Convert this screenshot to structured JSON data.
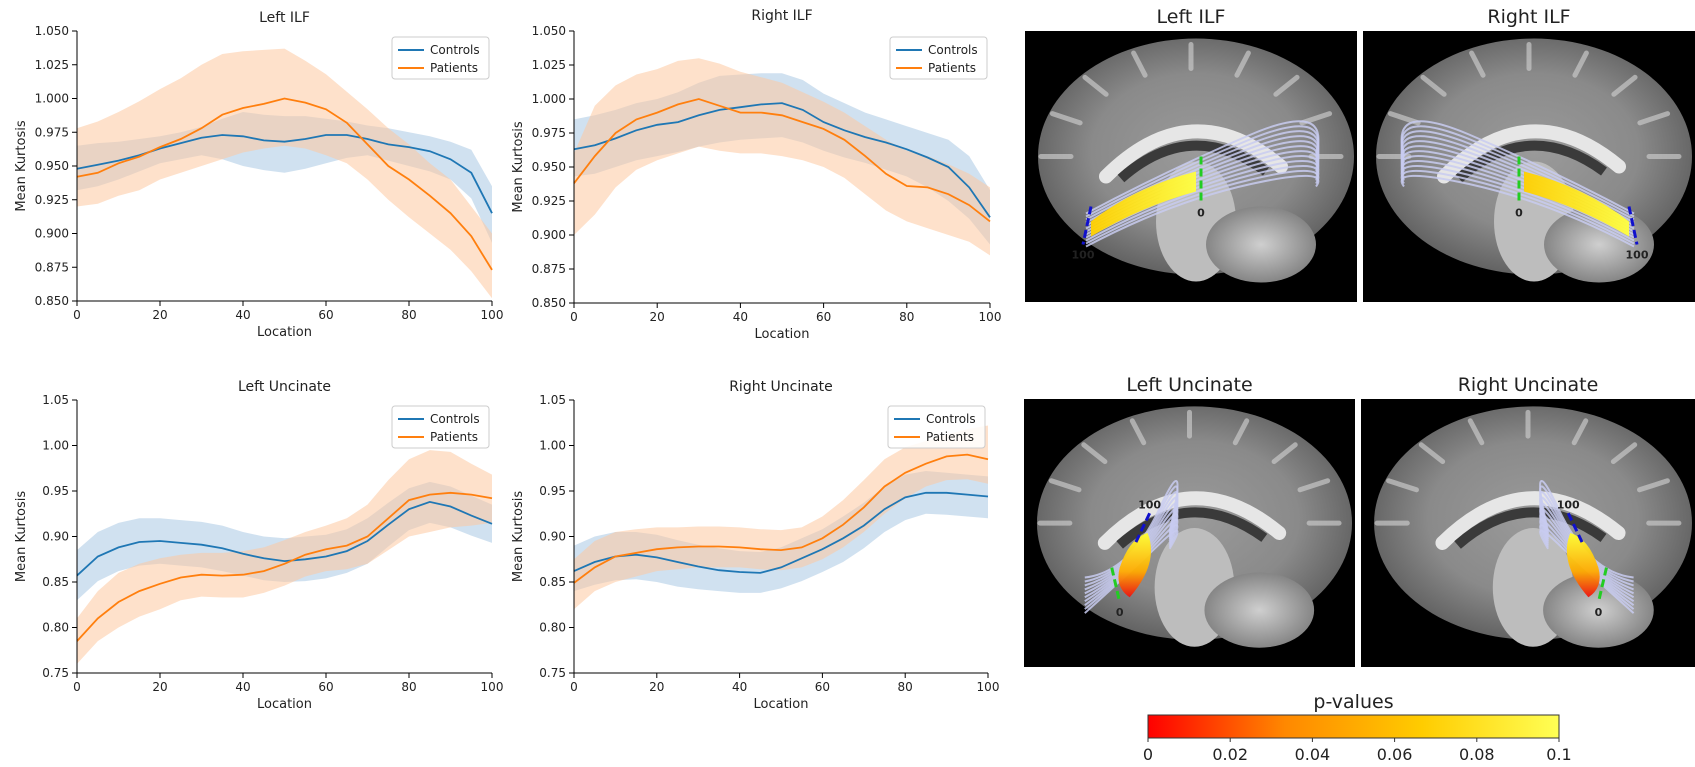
{
  "colors": {
    "controls": "#1f77b4",
    "patients": "#ff7f0e",
    "controls_band": "#a9c8e4",
    "patients_band": "#fdc9a0",
    "tract_fibers": "#c8cbf0",
    "marker_start": "#22cc22",
    "marker_end": "#1010cc"
  },
  "chart_data": [
    {
      "type": "line",
      "title": "Left ILF",
      "xlabel": "Location",
      "ylabel": "Mean Kurtosis",
      "xlim": [
        0,
        100
      ],
      "ylim": [
        0.85,
        1.05
      ],
      "xticks": [
        0,
        20,
        40,
        60,
        80,
        100
      ],
      "yticks": [
        "0.850",
        "0.875",
        "0.900",
        "0.925",
        "0.950",
        "0.975",
        "1.000",
        "1.025",
        "1.050"
      ],
      "legend_position": "top-right",
      "grid": false,
      "x": [
        0,
        5,
        10,
        15,
        20,
        25,
        30,
        35,
        40,
        45,
        50,
        55,
        60,
        65,
        70,
        75,
        80,
        85,
        90,
        95,
        100
      ],
      "series": [
        {
          "name": "Controls",
          "color": "#1f77b4",
          "values": [
            0.948,
            0.951,
            0.954,
            0.958,
            0.963,
            0.967,
            0.971,
            0.973,
            0.972,
            0.969,
            0.968,
            0.97,
            0.973,
            0.973,
            0.97,
            0.966,
            0.964,
            0.961,
            0.955,
            0.945,
            0.915
          ],
          "upper": [
            0.965,
            0.967,
            0.968,
            0.97,
            0.972,
            0.975,
            0.979,
            0.985,
            0.99,
            0.988,
            0.987,
            0.987,
            0.985,
            0.983,
            0.98,
            0.978,
            0.975,
            0.972,
            0.968,
            0.962,
            0.935
          ],
          "lower": [
            0.932,
            0.935,
            0.94,
            0.946,
            0.952,
            0.955,
            0.958,
            0.955,
            0.95,
            0.947,
            0.945,
            0.948,
            0.952,
            0.956,
            0.958,
            0.954,
            0.95,
            0.946,
            0.94,
            0.926,
            0.893
          ]
        },
        {
          "name": "Patients",
          "color": "#ff7f0e",
          "values": [
            0.942,
            0.945,
            0.952,
            0.957,
            0.964,
            0.97,
            0.978,
            0.988,
            0.993,
            0.996,
            1.0,
            0.997,
            0.992,
            0.982,
            0.966,
            0.95,
            0.94,
            0.928,
            0.915,
            0.898,
            0.873
          ],
          "upper": [
            0.978,
            0.983,
            0.99,
            0.998,
            1.007,
            1.015,
            1.025,
            1.033,
            1.035,
            1.036,
            1.037,
            1.028,
            1.018,
            1.005,
            0.992,
            0.978,
            0.966,
            0.952,
            0.94,
            0.92,
            0.9
          ],
          "lower": [
            0.92,
            0.922,
            0.928,
            0.932,
            0.94,
            0.945,
            0.95,
            0.955,
            0.96,
            0.963,
            0.965,
            0.963,
            0.958,
            0.952,
            0.94,
            0.925,
            0.912,
            0.9,
            0.888,
            0.872,
            0.852
          ]
        }
      ]
    },
    {
      "type": "line",
      "title": "Right ILF",
      "xlabel": "Location",
      "ylabel": "Mean Kurtosis",
      "xlim": [
        0,
        100
      ],
      "ylim": [
        0.85,
        1.05
      ],
      "xticks": [
        0,
        20,
        40,
        60,
        80,
        100
      ],
      "yticks": [
        "0.850",
        "0.875",
        "0.900",
        "0.925",
        "0.950",
        "0.975",
        "1.000",
        "1.025",
        "1.050"
      ],
      "legend_position": "top-right",
      "grid": false,
      "x": [
        0,
        5,
        10,
        15,
        20,
        25,
        30,
        35,
        40,
        45,
        50,
        55,
        60,
        65,
        70,
        75,
        80,
        85,
        90,
        95,
        100
      ],
      "series": [
        {
          "name": "Controls",
          "color": "#1f77b4",
          "values": [
            0.963,
            0.966,
            0.971,
            0.977,
            0.981,
            0.983,
            0.988,
            0.992,
            0.994,
            0.996,
            0.997,
            0.992,
            0.983,
            0.977,
            0.972,
            0.968,
            0.963,
            0.957,
            0.95,
            0.935,
            0.913
          ],
          "upper": [
            0.985,
            0.988,
            0.992,
            0.997,
            1.0,
            1.005,
            1.012,
            1.017,
            1.018,
            1.019,
            1.019,
            1.014,
            1.004,
            0.997,
            0.99,
            0.985,
            0.98,
            0.975,
            0.97,
            0.958,
            0.933
          ],
          "lower": [
            0.943,
            0.945,
            0.95,
            0.955,
            0.958,
            0.961,
            0.965,
            0.968,
            0.97,
            0.971,
            0.972,
            0.968,
            0.962,
            0.957,
            0.953,
            0.948,
            0.943,
            0.935,
            0.925,
            0.912,
            0.893
          ]
        },
        {
          "name": "Patients",
          "color": "#ff7f0e",
          "values": [
            0.938,
            0.958,
            0.975,
            0.985,
            0.99,
            0.996,
            1.0,
            0.995,
            0.99,
            0.99,
            0.988,
            0.983,
            0.978,
            0.97,
            0.958,
            0.945,
            0.936,
            0.935,
            0.93,
            0.922,
            0.91
          ],
          "upper": [
            0.96,
            0.995,
            1.01,
            1.018,
            1.022,
            1.028,
            1.03,
            1.026,
            1.02,
            1.016,
            1.012,
            1.005,
            0.998,
            0.99,
            0.98,
            0.97,
            0.962,
            0.958,
            0.952,
            0.945,
            0.935
          ],
          "lower": [
            0.9,
            0.915,
            0.935,
            0.948,
            0.955,
            0.96,
            0.965,
            0.962,
            0.96,
            0.96,
            0.958,
            0.955,
            0.95,
            0.942,
            0.93,
            0.918,
            0.91,
            0.905,
            0.9,
            0.895,
            0.885
          ]
        }
      ]
    },
    {
      "type": "line",
      "title": "Left Uncinate",
      "xlabel": "Location",
      "ylabel": "Mean Kurtosis",
      "xlim": [
        0,
        100
      ],
      "ylim": [
        0.75,
        1.05
      ],
      "xticks": [
        0,
        20,
        40,
        60,
        80,
        100
      ],
      "yticks": [
        "0.75",
        "0.80",
        "0.85",
        "0.90",
        "0.95",
        "1.00",
        "1.05"
      ],
      "legend_position": "top-right",
      "grid": false,
      "x": [
        0,
        5,
        10,
        15,
        20,
        25,
        30,
        35,
        40,
        45,
        50,
        55,
        60,
        65,
        70,
        75,
        80,
        85,
        90,
        95,
        100
      ],
      "series": [
        {
          "name": "Controls",
          "color": "#1f77b4",
          "values": [
            0.857,
            0.878,
            0.888,
            0.894,
            0.895,
            0.893,
            0.891,
            0.887,
            0.881,
            0.876,
            0.873,
            0.875,
            0.878,
            0.884,
            0.895,
            0.913,
            0.93,
            0.938,
            0.933,
            0.923,
            0.914
          ],
          "upper": [
            0.885,
            0.905,
            0.915,
            0.92,
            0.92,
            0.918,
            0.916,
            0.912,
            0.905,
            0.9,
            0.898,
            0.9,
            0.902,
            0.908,
            0.92,
            0.937,
            0.953,
            0.96,
            0.955,
            0.945,
            0.935
          ],
          "lower": [
            0.83,
            0.851,
            0.862,
            0.868,
            0.87,
            0.868,
            0.866,
            0.862,
            0.857,
            0.852,
            0.85,
            0.851,
            0.854,
            0.86,
            0.87,
            0.889,
            0.907,
            0.915,
            0.91,
            0.901,
            0.893
          ]
        },
        {
          "name": "Patients",
          "color": "#ff7f0e",
          "values": [
            0.785,
            0.81,
            0.828,
            0.84,
            0.848,
            0.855,
            0.858,
            0.857,
            0.858,
            0.862,
            0.87,
            0.88,
            0.886,
            0.89,
            0.9,
            0.92,
            0.94,
            0.946,
            0.948,
            0.946,
            0.942
          ],
          "upper": [
            0.81,
            0.84,
            0.86,
            0.87,
            0.876,
            0.88,
            0.882,
            0.882,
            0.884,
            0.888,
            0.896,
            0.905,
            0.912,
            0.92,
            0.935,
            0.962,
            0.985,
            0.995,
            0.993,
            0.98,
            0.968
          ],
          "lower": [
            0.76,
            0.785,
            0.8,
            0.812,
            0.82,
            0.83,
            0.834,
            0.833,
            0.833,
            0.838,
            0.846,
            0.856,
            0.862,
            0.864,
            0.87,
            0.885,
            0.9,
            0.905,
            0.91,
            0.912,
            0.915
          ]
        }
      ]
    },
    {
      "type": "line",
      "title": "Right Uncinate",
      "xlabel": "Location",
      "ylabel": "Mean Kurtosis",
      "xlim": [
        0,
        100
      ],
      "ylim": [
        0.75,
        1.05
      ],
      "xticks": [
        0,
        20,
        40,
        60,
        80,
        100
      ],
      "yticks": [
        "0.75",
        "0.80",
        "0.85",
        "0.90",
        "0.95",
        "1.00",
        "1.05"
      ],
      "legend_position": "top-right",
      "grid": false,
      "x": [
        0,
        5,
        10,
        15,
        20,
        25,
        30,
        35,
        40,
        45,
        50,
        55,
        60,
        65,
        70,
        75,
        80,
        85,
        90,
        95,
        100
      ],
      "series": [
        {
          "name": "Controls",
          "color": "#1f77b4",
          "values": [
            0.862,
            0.872,
            0.878,
            0.88,
            0.877,
            0.872,
            0.867,
            0.863,
            0.861,
            0.86,
            0.866,
            0.876,
            0.886,
            0.898,
            0.912,
            0.93,
            0.943,
            0.948,
            0.948,
            0.946,
            0.944
          ],
          "upper": [
            0.89,
            0.9,
            0.905,
            0.905,
            0.902,
            0.896,
            0.891,
            0.887,
            0.884,
            0.883,
            0.888,
            0.898,
            0.908,
            0.922,
            0.937,
            0.955,
            0.968,
            0.972,
            0.97,
            0.968,
            0.966
          ],
          "lower": [
            0.84,
            0.847,
            0.852,
            0.853,
            0.85,
            0.845,
            0.842,
            0.84,
            0.838,
            0.838,
            0.843,
            0.851,
            0.861,
            0.872,
            0.887,
            0.905,
            0.918,
            0.925,
            0.924,
            0.922,
            0.92
          ]
        },
        {
          "name": "Patients",
          "color": "#ff7f0e",
          "values": [
            0.849,
            0.866,
            0.878,
            0.882,
            0.886,
            0.888,
            0.889,
            0.889,
            0.888,
            0.886,
            0.885,
            0.888,
            0.898,
            0.913,
            0.932,
            0.955,
            0.97,
            0.98,
            0.988,
            0.99,
            0.985
          ],
          "upper": [
            0.875,
            0.895,
            0.905,
            0.908,
            0.91,
            0.91,
            0.911,
            0.911,
            0.91,
            0.908,
            0.907,
            0.91,
            0.922,
            0.94,
            0.962,
            0.985,
            0.998,
            1.005,
            1.012,
            1.018,
            1.022
          ],
          "lower": [
            0.82,
            0.84,
            0.85,
            0.856,
            0.862,
            0.864,
            0.866,
            0.866,
            0.866,
            0.864,
            0.863,
            0.866,
            0.875,
            0.888,
            0.905,
            0.925,
            0.942,
            0.955,
            0.962,
            0.963,
            0.958
          ]
        }
      ]
    }
  ],
  "brain_panels": [
    {
      "title": "Left ILF",
      "tract": "ilf",
      "side": "left",
      "start_label": "0",
      "end_label": "100"
    },
    {
      "title": "Right ILF",
      "tract": "ilf",
      "side": "right",
      "start_label": "0",
      "end_label": "100"
    },
    {
      "title": "Left Uncinate",
      "tract": "uncinate",
      "side": "left",
      "start_label": "0",
      "end_label": "100"
    },
    {
      "title": "Right Uncinate",
      "tract": "uncinate",
      "side": "right",
      "start_label": "0",
      "end_label": "100"
    }
  ],
  "colorbar": {
    "title": "p-values",
    "ticks": [
      "0",
      "0.02",
      "0.04",
      "0.06",
      "0.08",
      "0.1"
    ],
    "gradient": [
      "#ff0000",
      "#ff8800",
      "#ffcc00",
      "#ffff55"
    ]
  }
}
